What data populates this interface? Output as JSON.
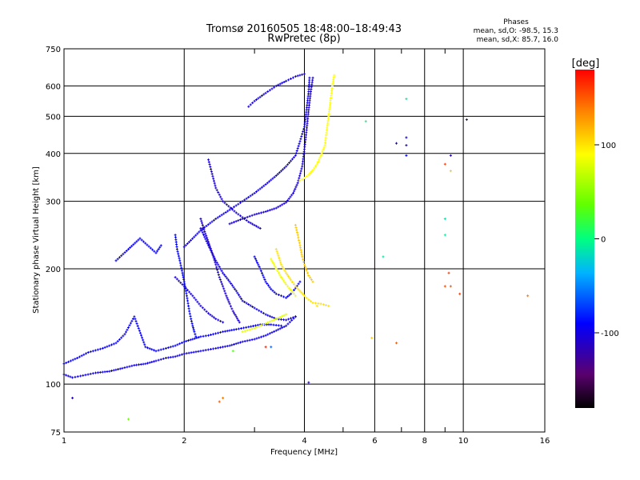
{
  "header": {
    "title_line1": "Tromsø 20160505 18:48:00–18:49:43",
    "title_line2": "RwPretec (8p)"
  },
  "phases_box": {
    "title": "Phases",
    "line1": "mean, sd,O: -98.5, 15.3",
    "line2": "mean, sd,X: 85.7, 16.0"
  },
  "chart_data": {
    "type": "scatter",
    "xlabel": "Frequency [MHz]",
    "ylabel": "Stationary phase Virtual Height [km]",
    "xscale": "log",
    "yscale": "log",
    "xlim": [
      1,
      16
    ],
    "ylim": [
      75,
      750
    ],
    "x_ticks": [
      1,
      2,
      4,
      6,
      8,
      10,
      16
    ],
    "x_tick_labels": [
      "1",
      "2",
      "4",
      "6",
      "8",
      "10",
      "16"
    ],
    "x_minor_ticks": [
      3,
      5,
      7,
      9
    ],
    "y_ticks": [
      75,
      100,
      200,
      300,
      400,
      500,
      600,
      750
    ],
    "y_tick_labels": [
      "75",
      "100",
      "200",
      "300",
      "400",
      "500",
      "600",
      "750"
    ],
    "grid": true,
    "colorbar": {
      "label": "[deg]",
      "range": [
        -180,
        180
      ],
      "ticks": [
        100,
        0,
        -100
      ],
      "tick_labels": [
        "100",
        "0",
        "-100"
      ]
    },
    "traces": [
      {
        "name": "",
        "phase": -95,
        "points": [
          [
            1.0,
            113
          ],
          [
            1.08,
            117
          ],
          [
            1.15,
            121
          ],
          [
            1.25,
            124
          ],
          [
            1.35,
            128
          ],
          [
            1.42,
            135
          ],
          [
            1.5,
            150
          ],
          [
            1.6,
            125
          ],
          [
            1.7,
            122
          ],
          [
            1.8,
            124
          ],
          [
            1.9,
            126
          ],
          [
            2.0,
            129
          ],
          [
            2.1,
            131
          ],
          [
            2.2,
            133
          ],
          [
            2.3,
            134
          ],
          [
            2.5,
            137
          ],
          [
            2.7,
            139
          ],
          [
            2.9,
            141
          ],
          [
            3.1,
            143
          ],
          [
            3.3,
            143
          ],
          [
            3.5,
            142
          ]
        ]
      },
      {
        "name": "",
        "phase": -100,
        "points": [
          [
            1.0,
            106
          ],
          [
            1.05,
            104
          ],
          [
            1.1,
            105
          ],
          [
            1.2,
            107
          ],
          [
            1.3,
            108
          ],
          [
            1.4,
            110
          ],
          [
            1.5,
            112
          ],
          [
            1.6,
            113
          ],
          [
            1.7,
            115
          ],
          [
            1.8,
            117
          ],
          [
            1.9,
            118
          ],
          [
            2.0,
            120
          ],
          [
            2.2,
            122
          ],
          [
            2.4,
            124
          ],
          [
            2.6,
            126
          ],
          [
            2.8,
            129
          ],
          [
            3.0,
            131
          ],
          [
            3.2,
            134
          ],
          [
            3.4,
            138
          ],
          [
            3.6,
            142
          ],
          [
            3.8,
            150
          ]
        ]
      },
      {
        "name": "",
        "phase": -105,
        "points": [
          [
            2.6,
            262
          ],
          [
            2.8,
            270
          ],
          [
            3.0,
            277
          ],
          [
            3.2,
            282
          ],
          [
            3.4,
            288
          ],
          [
            3.6,
            298
          ],
          [
            3.75,
            315
          ],
          [
            3.85,
            335
          ],
          [
            3.95,
            370
          ],
          [
            4.0,
            410
          ],
          [
            4.05,
            460
          ],
          [
            4.1,
            520
          ],
          [
            4.15,
            580
          ],
          [
            4.2,
            630
          ]
        ]
      },
      {
        "name": "",
        "phase": -100,
        "points": [
          [
            2.0,
            228
          ],
          [
            2.2,
            252
          ],
          [
            2.4,
            270
          ],
          [
            2.6,
            285
          ],
          [
            2.8,
            300
          ],
          [
            3.0,
            315
          ],
          [
            3.2,
            332
          ],
          [
            3.4,
            350
          ],
          [
            3.6,
            370
          ],
          [
            3.8,
            395
          ],
          [
            3.9,
            430
          ],
          [
            4.0,
            470
          ],
          [
            4.05,
            520
          ],
          [
            4.1,
            580
          ],
          [
            4.12,
            630
          ]
        ]
      },
      {
        "name": "",
        "phase": -102,
        "points": [
          [
            2.9,
            530
          ],
          [
            3.0,
            548
          ],
          [
            3.2,
            575
          ],
          [
            3.4,
            600
          ],
          [
            3.6,
            618
          ],
          [
            3.8,
            635
          ],
          [
            4.0,
            645
          ]
        ]
      },
      {
        "name": "",
        "phase": -105,
        "points": [
          [
            2.3,
            385
          ],
          [
            2.4,
            325
          ],
          [
            2.5,
            300
          ],
          [
            2.7,
            280
          ],
          [
            2.9,
            265
          ],
          [
            3.1,
            255
          ]
        ]
      },
      {
        "name": "",
        "phase": -95,
        "points": [
          [
            1.35,
            210
          ],
          [
            1.45,
            225
          ],
          [
            1.55,
            240
          ],
          [
            1.7,
            220
          ],
          [
            1.75,
            230
          ]
        ]
      },
      {
        "name": "",
        "phase": -105,
        "points": [
          [
            1.9,
            190
          ],
          [
            2.0,
            180
          ],
          [
            2.1,
            170
          ],
          [
            2.2,
            160
          ],
          [
            2.3,
            153
          ],
          [
            2.4,
            148
          ],
          [
            2.5,
            145
          ]
        ]
      },
      {
        "name": "",
        "phase": -100,
        "points": [
          [
            2.2,
            255
          ],
          [
            2.3,
            230
          ],
          [
            2.4,
            210
          ],
          [
            2.5,
            195
          ],
          [
            2.6,
            185
          ],
          [
            2.7,
            175
          ],
          [
            2.8,
            165
          ],
          [
            3.0,
            158
          ],
          [
            3.2,
            152
          ],
          [
            3.4,
            148
          ],
          [
            3.6,
            147
          ],
          [
            3.8,
            150
          ]
        ]
      },
      {
        "name": "",
        "phase": -95,
        "points": [
          [
            3.0,
            215
          ],
          [
            3.1,
            200
          ],
          [
            3.2,
            185
          ],
          [
            3.3,
            177
          ],
          [
            3.4,
            172
          ],
          [
            3.5,
            170
          ],
          [
            3.6,
            168
          ],
          [
            3.7,
            172
          ],
          [
            3.8,
            178
          ],
          [
            3.9,
            185
          ]
        ]
      },
      {
        "name": "",
        "phase": -108,
        "points": [
          [
            2.2,
            270
          ],
          [
            2.25,
            250
          ],
          [
            2.3,
            235
          ],
          [
            2.35,
            220
          ],
          [
            2.4,
            205
          ],
          [
            2.45,
            190
          ],
          [
            2.5,
            180
          ],
          [
            2.55,
            170
          ],
          [
            2.6,
            162
          ],
          [
            2.65,
            155
          ],
          [
            2.7,
            150
          ],
          [
            2.75,
            145
          ]
        ]
      },
      {
        "name": "",
        "phase": -90,
        "points": [
          [
            1.9,
            245
          ],
          [
            1.92,
            225
          ],
          [
            1.95,
            210
          ],
          [
            1.98,
            195
          ],
          [
            2.0,
            185
          ],
          [
            2.02,
            175
          ],
          [
            2.04,
            165
          ],
          [
            2.06,
            155
          ],
          [
            2.08,
            148
          ],
          [
            2.1,
            142
          ],
          [
            2.12,
            137
          ],
          [
            2.14,
            133
          ]
        ]
      },
      {
        "name": "",
        "phase": 90,
        "points": [
          [
            3.9,
            340
          ],
          [
            4.0,
            345
          ],
          [
            4.1,
            352
          ],
          [
            4.2,
            362
          ],
          [
            4.3,
            375
          ],
          [
            4.4,
            395
          ],
          [
            4.5,
            420
          ],
          [
            4.55,
            460
          ],
          [
            4.6,
            500
          ],
          [
            4.65,
            550
          ],
          [
            4.7,
            600
          ],
          [
            4.75,
            640
          ]
        ]
      },
      {
        "name": "",
        "phase": 100,
        "points": [
          [
            3.4,
            225
          ],
          [
            3.5,
            205
          ],
          [
            3.6,
            195
          ],
          [
            3.7,
            187
          ],
          [
            3.8,
            180
          ],
          [
            3.9,
            175
          ],
          [
            4.0,
            170
          ],
          [
            4.1,
            166
          ],
          [
            4.2,
            163
          ],
          [
            4.4,
            162
          ],
          [
            4.6,
            160
          ]
        ]
      },
      {
        "name": "",
        "phase": 85,
        "points": [
          [
            3.3,
            212
          ],
          [
            3.4,
            200
          ],
          [
            3.5,
            190
          ],
          [
            3.6,
            182
          ],
          [
            3.7,
            176
          ],
          [
            3.8,
            170
          ]
        ]
      },
      {
        "name": "",
        "phase": 80,
        "points": [
          [
            2.8,
            137
          ],
          [
            3.0,
            140
          ],
          [
            3.2,
            144
          ],
          [
            3.4,
            148
          ],
          [
            3.6,
            152
          ]
        ]
      },
      {
        "name": "",
        "phase": 110,
        "points": [
          [
            3.8,
            260
          ],
          [
            3.85,
            245
          ],
          [
            3.9,
            230
          ],
          [
            3.95,
            215
          ],
          [
            4.0,
            205
          ],
          [
            4.05,
            198
          ],
          [
            4.1,
            192
          ],
          [
            4.2,
            185
          ]
        ]
      }
    ],
    "scatter": [
      {
        "x": 7.2,
        "y": 555,
        "phase": -10
      },
      {
        "x": 5.7,
        "y": 485,
        "phase": 0
      },
      {
        "x": 7.2,
        "y": 440,
        "phase": -90
      },
      {
        "x": 7.2,
        "y": 420,
        "phase": -100
      },
      {
        "x": 6.8,
        "y": 425,
        "phase": -100
      },
      {
        "x": 7.2,
        "y": 395,
        "phase": -90
      },
      {
        "x": 10.2,
        "y": 490,
        "phase": -110
      },
      {
        "x": 9.3,
        "y": 395,
        "phase": -110
      },
      {
        "x": 9.0,
        "y": 375,
        "phase": 160
      },
      {
        "x": 9.3,
        "y": 360,
        "phase": 110
      },
      {
        "x": 9.0,
        "y": 270,
        "phase": -10
      },
      {
        "x": 9.0,
        "y": 245,
        "phase": -5
      },
      {
        "x": 6.3,
        "y": 215,
        "phase": -10
      },
      {
        "x": 9.2,
        "y": 195,
        "phase": 160
      },
      {
        "x": 9.0,
        "y": 180,
        "phase": 155
      },
      {
        "x": 9.3,
        "y": 180,
        "phase": 150
      },
      {
        "x": 9.8,
        "y": 172,
        "phase": 160
      },
      {
        "x": 14.5,
        "y": 170,
        "phase": 140
      },
      {
        "x": 6.8,
        "y": 128,
        "phase": 150
      },
      {
        "x": 5.9,
        "y": 132,
        "phase": 110
      },
      {
        "x": 4.1,
        "y": 101,
        "phase": -110
      },
      {
        "x": 2.5,
        "y": 92,
        "phase": 140
      },
      {
        "x": 2.45,
        "y": 90,
        "phase": 150
      },
      {
        "x": 1.45,
        "y": 81,
        "phase": 40
      },
      {
        "x": 1.05,
        "y": 92,
        "phase": -110
      },
      {
        "x": 2.65,
        "y": 122,
        "phase": 30
      },
      {
        "x": 3.2,
        "y": 125,
        "phase": 170
      },
      {
        "x": 3.3,
        "y": 125,
        "phase": -60
      },
      {
        "x": 4.3,
        "y": 160,
        "phase": 100
      }
    ]
  }
}
